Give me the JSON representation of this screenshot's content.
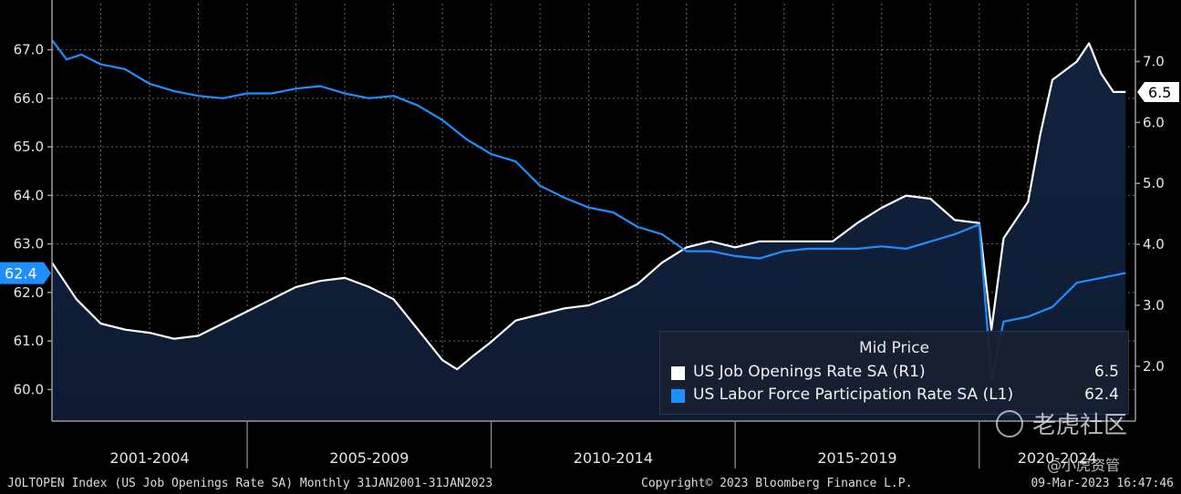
{
  "chart_data": {
    "type": "line",
    "title": "",
    "period_labels": [
      "2001-2004",
      "2005-2009",
      "2010-2014",
      "2015-2019",
      "2020-2024"
    ],
    "left_axis": {
      "ticks": [
        "60.0",
        "61.0",
        "62.0",
        "63.0",
        "64.0",
        "65.0",
        "66.0",
        "67.0"
      ],
      "ylim": [
        59.35,
        67.95
      ]
    },
    "right_axis": {
      "ticks": [
        "2.0",
        "3.0",
        "4.0",
        "5.0",
        "6.0",
        "7.0"
      ],
      "ylim": [
        1.1,
        7.95
      ]
    },
    "series": [
      {
        "name": "US Job Openings Rate SA",
        "axis": "R1",
        "color": "#ffffff",
        "last_label": "6.5",
        "x": [
          2001.0,
          2001.25,
          2001.5,
          2001.75,
          2002.0,
          2002.5,
          2003.0,
          2003.5,
          2004.0,
          2004.5,
          2005.0,
          2005.5,
          2006.0,
          2006.5,
          2007.0,
          2007.5,
          2008.0,
          2008.5,
          2009.0,
          2009.3,
          2009.6,
          2010.0,
          2010.5,
          2011.0,
          2011.5,
          2012.0,
          2012.5,
          2013.0,
          2013.5,
          2014.0,
          2014.5,
          2015.0,
          2015.5,
          2016.0,
          2016.5,
          2017.0,
          2017.5,
          2018.0,
          2018.5,
          2019.0,
          2019.5,
          2020.0,
          2020.25,
          2020.5,
          2021.0,
          2021.25,
          2021.5,
          2022.0,
          2022.25,
          2022.5,
          2022.75,
          2023.0
        ],
        "values": [
          3.7,
          3.4,
          3.1,
          2.9,
          2.7,
          2.6,
          2.55,
          2.45,
          2.5,
          2.7,
          2.9,
          3.1,
          3.3,
          3.4,
          3.45,
          3.3,
          3.1,
          2.6,
          2.1,
          1.95,
          2.15,
          2.4,
          2.75,
          2.85,
          2.95,
          3.0,
          3.15,
          3.35,
          3.7,
          3.95,
          4.05,
          3.95,
          4.05,
          4.05,
          4.05,
          4.05,
          4.35,
          4.6,
          4.8,
          4.75,
          4.4,
          4.35,
          2.6,
          4.1,
          4.7,
          5.8,
          6.7,
          7.0,
          7.3,
          6.8,
          6.5,
          6.5
        ]
      },
      {
        "name": "US Labor Force Participation Rate SA",
        "axis": "L1",
        "color": "#1f8fff",
        "last_label": "62.4",
        "x": [
          2001.0,
          2001.3,
          2001.6,
          2002.0,
          2002.5,
          2003.0,
          2003.5,
          2004.0,
          2004.5,
          2005.0,
          2005.5,
          2006.0,
          2006.5,
          2007.0,
          2007.5,
          2008.0,
          2008.5,
          2009.0,
          2009.5,
          2010.0,
          2010.5,
          2011.0,
          2011.5,
          2012.0,
          2012.5,
          2013.0,
          2013.5,
          2014.0,
          2014.5,
          2015.0,
          2015.5,
          2016.0,
          2016.5,
          2017.0,
          2017.5,
          2018.0,
          2018.5,
          2019.0,
          2019.5,
          2020.0,
          2020.25,
          2020.5,
          2021.0,
          2021.5,
          2022.0,
          2022.5,
          2023.0
        ],
        "values": [
          67.2,
          66.8,
          66.9,
          66.7,
          66.6,
          66.3,
          66.15,
          66.05,
          66.0,
          66.1,
          66.1,
          66.2,
          66.25,
          66.1,
          66.0,
          66.05,
          65.85,
          65.55,
          65.15,
          64.85,
          64.7,
          64.2,
          63.95,
          63.75,
          63.65,
          63.35,
          63.2,
          62.85,
          62.85,
          62.75,
          62.7,
          62.85,
          62.9,
          62.9,
          62.9,
          62.95,
          62.9,
          63.05,
          63.2,
          63.4,
          60.2,
          61.4,
          61.5,
          61.7,
          62.2,
          62.3,
          62.4
        ]
      }
    ],
    "legend": {
      "title": "Mid Price",
      "placement": "bottom-right",
      "entries": [
        {
          "label": "US Job Openings Rate SA  (R1)",
          "value": "6.5",
          "color": "#ffffff"
        },
        {
          "label": "US Labor Force Participation Rate SA  (L1)",
          "value": "62.4",
          "color": "#1f8fff"
        }
      ]
    },
    "grid": true
  },
  "footer": {
    "left": "JOLTOPEN Index (US Job Openings Rate SA)  Monthly 31JAN2001-31JAN2023",
    "center": "Copyright© 2023 Bloomberg Finance L.P.",
    "right": "09-Mar-2023 16:47:46"
  },
  "watermark": {
    "main": "老虎社区",
    "sub": "@小虎资管",
    "icon": "tiger-logo-icon"
  }
}
